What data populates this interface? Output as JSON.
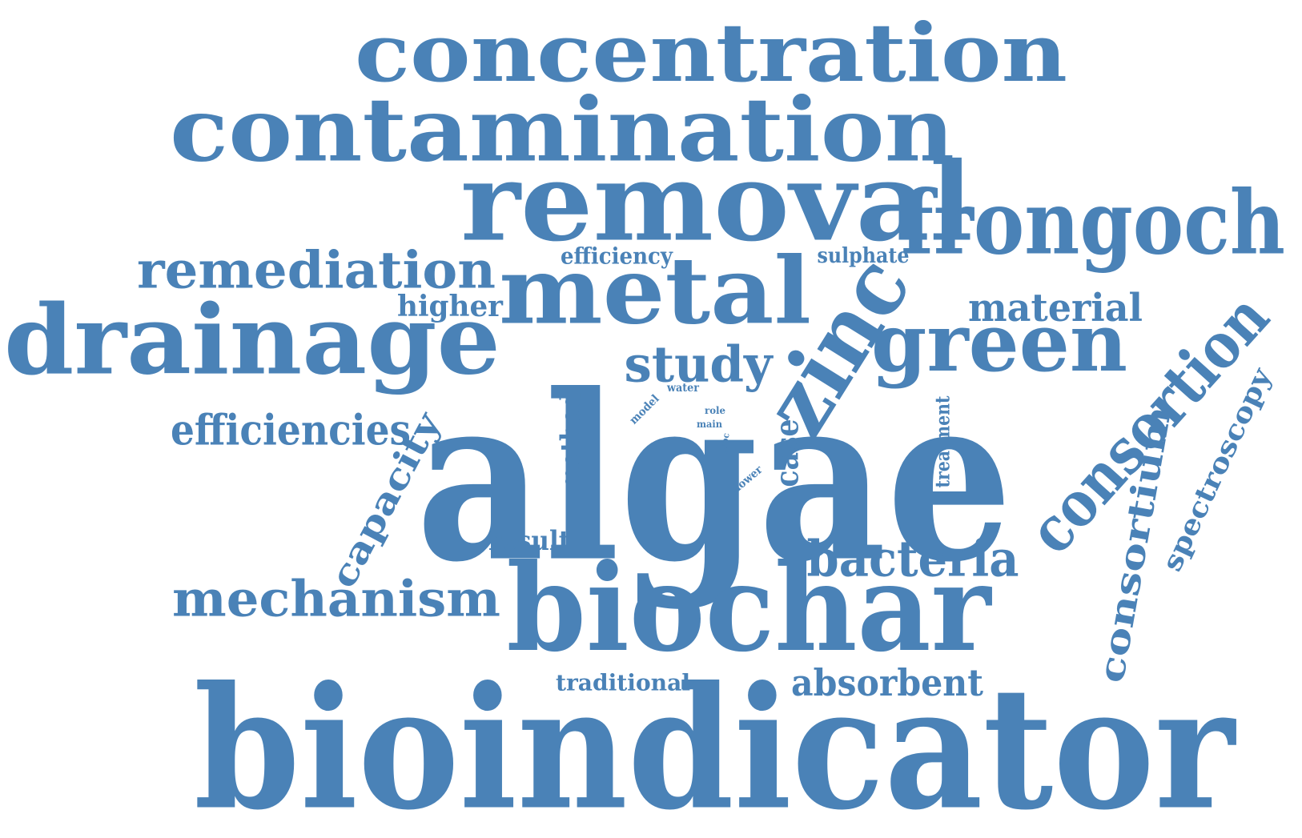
{
  "color": "#4a82b7",
  "words": [
    {
      "id": "algae",
      "text": "algae"
    },
    {
      "id": "bioindicator",
      "text": "bioindicator"
    },
    {
      "id": "biochar",
      "text": "biochar"
    },
    {
      "id": "removal",
      "text": "removal"
    },
    {
      "id": "contamination",
      "text": "contamination"
    },
    {
      "id": "concentration",
      "text": "concentration"
    },
    {
      "id": "drainage",
      "text": "drainage"
    },
    {
      "id": "metal",
      "text": "metal"
    },
    {
      "id": "frongoch",
      "text": "frongoch"
    },
    {
      "id": "zinc",
      "text": "zinc"
    },
    {
      "id": "green",
      "text": "green"
    },
    {
      "id": "consortion",
      "text": "consortion"
    },
    {
      "id": "remediation",
      "text": "remediation"
    },
    {
      "id": "mechanism",
      "text": "mechanism"
    },
    {
      "id": "bacteria",
      "text": "bacteria"
    },
    {
      "id": "study",
      "text": "study"
    },
    {
      "id": "material",
      "text": "material"
    },
    {
      "id": "efficiencies",
      "text": "efficiencies"
    },
    {
      "id": "absorbent",
      "text": "absorbent"
    },
    {
      "id": "consortium",
      "text": "consortium"
    },
    {
      "id": "capacity",
      "text": "capacity"
    },
    {
      "id": "spectroscopy",
      "text": "spectroscopy"
    },
    {
      "id": "higher",
      "text": "higher"
    },
    {
      "id": "method",
      "text": "method"
    },
    {
      "id": "case",
      "text": "case"
    },
    {
      "id": "efficiency",
      "text": "efficiency"
    },
    {
      "id": "sulphate",
      "text": "sulphate"
    },
    {
      "id": "result",
      "text": "result"
    },
    {
      "id": "traditional",
      "text": "traditional"
    },
    {
      "id": "treatment",
      "text": "treatment"
    },
    {
      "id": "water",
      "text": "water"
    },
    {
      "id": "model",
      "text": "model"
    },
    {
      "id": "role",
      "text": "role"
    },
    {
      "id": "main",
      "text": "main"
    },
    {
      "id": "proc",
      "text": "proc"
    },
    {
      "id": "lower",
      "text": "lower"
    }
  ]
}
